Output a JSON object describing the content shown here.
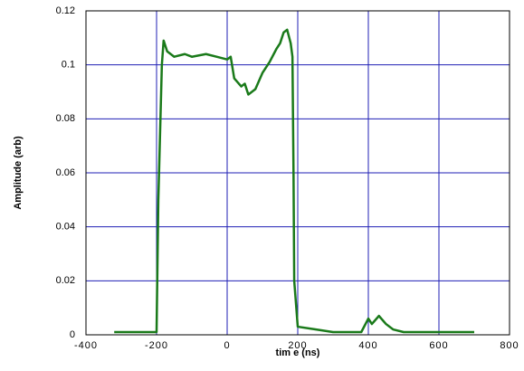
{
  "chart_data": {
    "type": "line",
    "x_label": "tim e (ns)",
    "y_label": "Amplitude (arb)",
    "xlim": [
      -400,
      800
    ],
    "xticks": [
      -400,
      -200,
      0,
      200,
      400,
      600,
      800
    ],
    "ylim": [
      0,
      0.12
    ],
    "yticks": [
      0,
      0.02,
      0.04,
      0.06,
      0.08,
      0.1,
      0.12
    ],
    "grid": true,
    "grid_color": "#1f1fb4",
    "series": [
      {
        "color": "#1a7a1a",
        "x": [
          -320,
          -200,
          -195,
          -185,
          -180,
          -170,
          -150,
          -120,
          -100,
          -60,
          -30,
          0,
          10,
          20,
          40,
          50,
          60,
          80,
          100,
          120,
          140,
          150,
          160,
          170,
          180,
          185,
          188,
          190,
          200,
          250,
          300,
          380,
          400,
          410,
          430,
          450,
          470,
          500,
          700
        ],
        "values": [
          0.001,
          0.001,
          0.05,
          0.1,
          0.109,
          0.105,
          0.103,
          0.104,
          0.103,
          0.104,
          0.103,
          0.102,
          0.103,
          0.095,
          0.092,
          0.093,
          0.089,
          0.091,
          0.097,
          0.101,
          0.106,
          0.108,
          0.112,
          0.113,
          0.108,
          0.103,
          0.06,
          0.02,
          0.003,
          0.002,
          0.001,
          0.001,
          0.006,
          0.004,
          0.007,
          0.004,
          0.002,
          0.001,
          0.001
        ]
      }
    ]
  }
}
